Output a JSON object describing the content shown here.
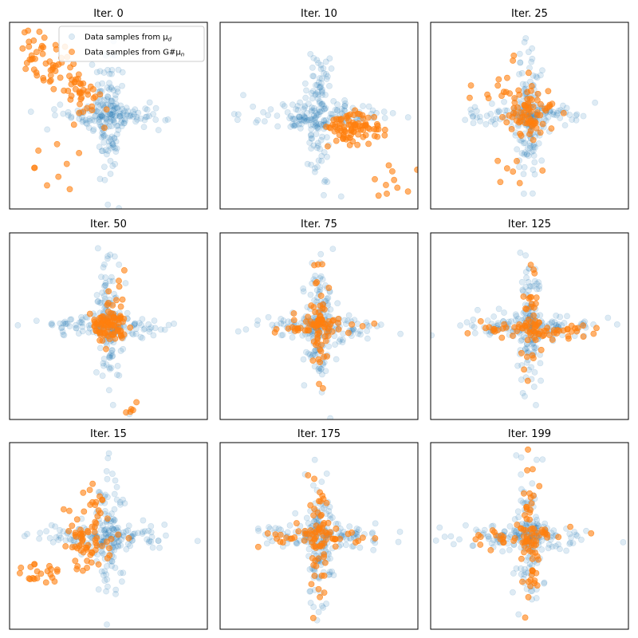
{
  "figure": {
    "legend": {
      "entries": [
        {
          "label": "Data samples from μ",
          "sub": "d",
          "color": "#1f77b4",
          "alpha": 0.15
        },
        {
          "label": "Data samples from G#μ",
          "sub": "n",
          "color": "#ff7f0e",
          "alpha": 0.6
        }
      ],
      "placement": "top-right of first panel"
    }
  },
  "chart_data": [
    {
      "type": "scatter",
      "title": "Iter. 0",
      "generated_pattern": "diagonal-upper-left",
      "xlim": [
        -3,
        3
      ],
      "ylim": [
        -3,
        3
      ],
      "grid": false
    },
    {
      "type": "scatter",
      "title": "Iter. 10",
      "generated_pattern": "diagonal-lower-right",
      "xlim": [
        -3,
        3
      ],
      "ylim": [
        -3,
        3
      ],
      "grid": false
    },
    {
      "type": "scatter",
      "title": "Iter. 25",
      "generated_pattern": "cluster-center",
      "xlim": [
        -3,
        3
      ],
      "ylim": [
        -3,
        3
      ],
      "grid": false
    },
    {
      "type": "scatter",
      "title": "Iter. 50",
      "generated_pattern": "cluster-center-with-tail",
      "xlim": [
        -3,
        3
      ],
      "ylim": [
        -3,
        3
      ],
      "grid": false
    },
    {
      "type": "scatter",
      "title": "Iter. 75",
      "generated_pattern": "cross-forming",
      "xlim": [
        -3,
        3
      ],
      "ylim": [
        -3,
        3
      ],
      "grid": false
    },
    {
      "type": "scatter",
      "title": "Iter. 125",
      "generated_pattern": "horizontal-arm",
      "xlim": [
        -3,
        3
      ],
      "ylim": [
        -3,
        3
      ],
      "grid": false
    },
    {
      "type": "scatter",
      "title": "Iter. 15",
      "generated_pattern": "lower-left-spread",
      "xlim": [
        -3,
        3
      ],
      "ylim": [
        -3,
        3
      ],
      "grid": false
    },
    {
      "type": "scatter",
      "title": "Iter. 175",
      "generated_pattern": "cross",
      "xlim": [
        -3,
        3
      ],
      "ylim": [
        -3,
        3
      ],
      "grid": false
    },
    {
      "type": "scatter",
      "title": "Iter. 199",
      "generated_pattern": "cross",
      "xlim": [
        -3,
        3
      ],
      "ylim": [
        -3,
        3
      ],
      "grid": false
    }
  ]
}
